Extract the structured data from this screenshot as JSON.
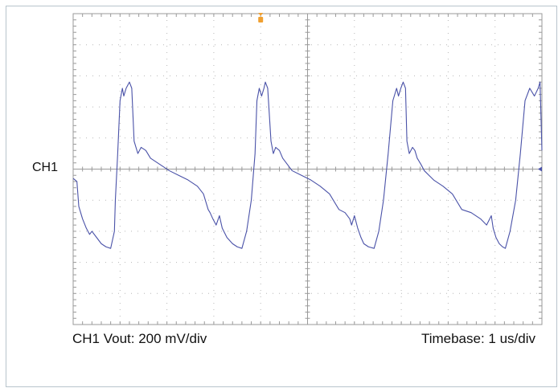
{
  "colors": {
    "background": "#ffffff",
    "frame": "#b8c4cc",
    "grid": "#9a9a9a",
    "trace": "#4a52a8",
    "trigger_marker": "#f0a030"
  },
  "labels": {
    "channel": "CH1",
    "vertical_scale": "CH1 Vout: 200 mV/div",
    "timebase": "Timebase: 1 us/div"
  },
  "chart_data": {
    "type": "line",
    "title": "",
    "xlabel": "Timebase: 1 us/div",
    "ylabel": "CH1 Vout: 200 mV/div",
    "x_unit": "div",
    "y_unit": "div",
    "xlim": [
      0,
      10
    ],
    "ylim": [
      -5,
      5
    ],
    "grid": true,
    "x_divisions": 10,
    "y_divisions": 10,
    "markers": {
      "channel_ground_level": 0,
      "trigger_position_x": 4
    },
    "series": [
      {
        "name": "CH1",
        "x": [
          0,
          0.08,
          0.12,
          0.2,
          0.28,
          0.35,
          0.4,
          0.5,
          0.6,
          0.7,
          0.8,
          0.88,
          0.9,
          0.95,
          1.0,
          1.05,
          1.08,
          1.13,
          1.2,
          1.25,
          1.3,
          1.38,
          1.45,
          1.55,
          1.65,
          1.85,
          2.05,
          2.25,
          2.45,
          2.65,
          2.78,
          2.88,
          2.92,
          2.98,
          3.05,
          3.12,
          3.18,
          3.28,
          3.4,
          3.5,
          3.6,
          3.7,
          3.8,
          3.88,
          3.92,
          3.97,
          4.02,
          4.07,
          4.1,
          4.15,
          4.22,
          4.27,
          4.32,
          4.4,
          4.47,
          4.57,
          4.67,
          4.87,
          5.07,
          5.27,
          5.47,
          5.67,
          5.8,
          5.9,
          5.94,
          6.0,
          6.07,
          6.14,
          6.2,
          6.3,
          6.42,
          6.52,
          6.62,
          6.72,
          6.82,
          6.9,
          6.94,
          6.99,
          7.04,
          7.09,
          7.12,
          7.17,
          7.24,
          7.29,
          7.34,
          7.42,
          7.49,
          7.59,
          7.69,
          7.89,
          8.09,
          8.29,
          8.49,
          8.69,
          8.82,
          8.92,
          8.96,
          9.02,
          9.09,
          9.16,
          9.22,
          9.32,
          9.44,
          9.54,
          9.64,
          9.74,
          9.84,
          9.92,
          9.96,
          10.0
        ],
        "y": [
          -0.3,
          -0.4,
          -1.2,
          -1.6,
          -1.9,
          -2.1,
          -2.0,
          -2.2,
          -2.4,
          -2.5,
          -2.55,
          -2.0,
          -1.0,
          0.5,
          2.2,
          2.6,
          2.35,
          2.6,
          2.8,
          2.6,
          0.9,
          0.5,
          0.7,
          0.6,
          0.35,
          0.15,
          -0.05,
          -0.2,
          -0.35,
          -0.55,
          -0.8,
          -1.3,
          -1.4,
          -1.6,
          -1.8,
          -1.5,
          -1.9,
          -2.2,
          -2.4,
          -2.5,
          -2.55,
          -2.0,
          -1.0,
          0.5,
          2.2,
          2.6,
          2.35,
          2.6,
          2.8,
          2.6,
          0.9,
          0.5,
          0.7,
          0.6,
          0.35,
          0.15,
          -0.05,
          -0.2,
          -0.35,
          -0.55,
          -0.8,
          -1.3,
          -1.4,
          -1.6,
          -1.8,
          -1.5,
          -1.9,
          -2.2,
          -2.4,
          -2.5,
          -2.55,
          -2.0,
          -1.0,
          0.5,
          2.2,
          2.6,
          2.35,
          2.6,
          2.8,
          2.6,
          0.9,
          0.5,
          0.7,
          0.6,
          0.35,
          0.15,
          -0.05,
          -0.2,
          -0.35,
          -0.55,
          -0.8,
          -1.3,
          -1.4,
          -1.6,
          -1.8,
          -1.5,
          -1.9,
          -2.2,
          -2.4,
          -2.5,
          -2.55,
          -2.0,
          -1.0,
          0.5,
          2.2,
          2.6,
          2.35,
          2.6,
          2.8,
          0.6
        ]
      }
    ]
  }
}
